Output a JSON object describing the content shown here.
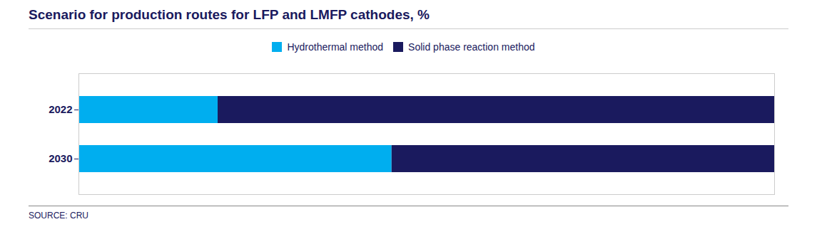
{
  "chart_data": {
    "type": "bar",
    "orientation": "horizontal",
    "stacked": true,
    "title": "Scenario for production routes for LFP and LMFP cathodes, %",
    "categories": [
      "2022",
      "2030"
    ],
    "series": [
      {
        "name": "Hydrothermal method",
        "color": "#00AEEF",
        "values": [
          20,
          45
        ]
      },
      {
        "name": "Solid phase reaction method",
        "color": "#1A1A5E",
        "values": [
          80,
          55
        ]
      }
    ],
    "xlim": [
      0,
      100
    ],
    "tick_labels": "y",
    "grid": false,
    "legend": "top",
    "caption": "SOURCE: CRU"
  }
}
